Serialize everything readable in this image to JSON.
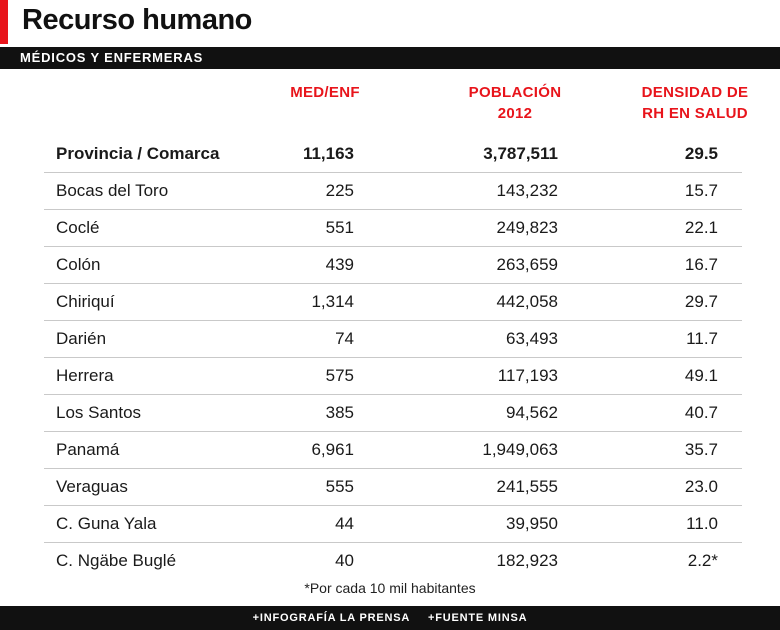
{
  "header": {
    "title": "Recurso humano",
    "subtitle": "MÉDICOS Y ENFERMERAS"
  },
  "colors": {
    "accent": "#e8141b",
    "bar": "#111111",
    "divider": "#c9c9c9"
  },
  "chart_data": {
    "type": "table",
    "columns": [
      "",
      "MED/ENF",
      "POBLACIÓN 2012",
      "DENSIDAD DE RH EN SALUD"
    ],
    "column_lines": [
      [
        "MED/ENF"
      ],
      [
        "POBLACIÓN",
        "2012"
      ],
      [
        "DENSIDAD DE",
        "RH EN SALUD"
      ]
    ],
    "total": {
      "label": "Provincia / Comarca",
      "med_enf": "11,163",
      "poblacion": "3,787,511",
      "densidad": "29.5"
    },
    "rows": [
      {
        "name": "Bocas del Toro",
        "med_enf": "225",
        "poblacion": "143,232",
        "densidad": "15.7"
      },
      {
        "name": "Coclé",
        "med_enf": "551",
        "poblacion": "249,823",
        "densidad": "22.1"
      },
      {
        "name": "Colón",
        "med_enf": "439",
        "poblacion": "263,659",
        "densidad": "16.7"
      },
      {
        "name": "Chiriquí",
        "med_enf": "1,314",
        "poblacion": "442,058",
        "densidad": "29.7"
      },
      {
        "name": "Darién",
        "med_enf": "74",
        "poblacion": "63,493",
        "densidad": "11.7"
      },
      {
        "name": "Herrera",
        "med_enf": "575",
        "poblacion": "117,193",
        "densidad": "49.1"
      },
      {
        "name": "Los Santos",
        "med_enf": "385",
        "poblacion": "94,562",
        "densidad": "40.7"
      },
      {
        "name": "Panamá",
        "med_enf": "6,961",
        "poblacion": "1,949,063",
        "densidad": "35.7"
      },
      {
        "name": "Veraguas",
        "med_enf": "555",
        "poblacion": "241,555",
        "densidad": "23.0"
      },
      {
        "name": "C. Guna Yala",
        "med_enf": "44",
        "poblacion": "39,950",
        "densidad": "11.0"
      },
      {
        "name": "C. Ngäbe Buglé",
        "med_enf": "40",
        "poblacion": "182,923",
        "densidad": "2.2*"
      }
    ]
  },
  "footnote": "*Por cada 10 mil habitantes",
  "footer": {
    "credit": "+INFOGRAFÍA LA PRENSA",
    "source": "+FUENTE MINSA"
  }
}
